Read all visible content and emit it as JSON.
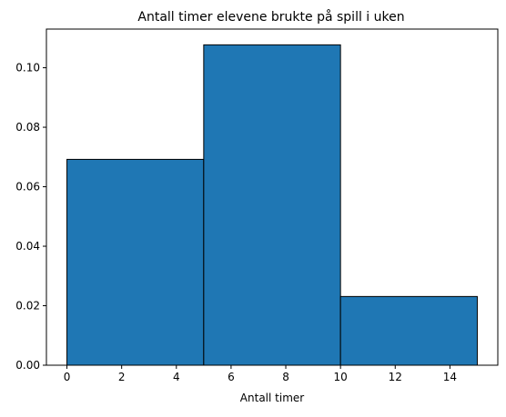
{
  "chart_data": {
    "type": "bar",
    "title": "Antall timer elevene brukte på spill i uken",
    "xlabel": "Antall timer",
    "ylabel": "",
    "bins": [
      {
        "start": 0,
        "end": 5,
        "value": 0.0692
      },
      {
        "start": 5,
        "end": 10,
        "value": 0.1077
      },
      {
        "start": 10,
        "end": 15,
        "value": 0.0231
      }
    ],
    "xlim": [
      -0.75,
      15.75
    ],
    "ylim": [
      0,
      0.113
    ],
    "xticks": [
      {
        "value": 0,
        "label": "0"
      },
      {
        "value": 2,
        "label": "2"
      },
      {
        "value": 4,
        "label": "4"
      },
      {
        "value": 6,
        "label": "6"
      },
      {
        "value": 8,
        "label": "8"
      },
      {
        "value": 10,
        "label": "10"
      },
      {
        "value": 12,
        "label": "12"
      },
      {
        "value": 14,
        "label": "14"
      }
    ],
    "yticks": [
      {
        "value": 0,
        "label": "0.00"
      },
      {
        "value": 0.02,
        "label": "0.02"
      },
      {
        "value": 0.04,
        "label": "0.04"
      },
      {
        "value": 0.06,
        "label": "0.06"
      },
      {
        "value": 0.08,
        "label": "0.08"
      },
      {
        "value": 0.1,
        "label": "0.10"
      }
    ],
    "grid": false,
    "legend": "none",
    "colors": {
      "bar_fill": "#1f77b4",
      "bar_edge": "#000000",
      "axis": "#000000"
    }
  }
}
